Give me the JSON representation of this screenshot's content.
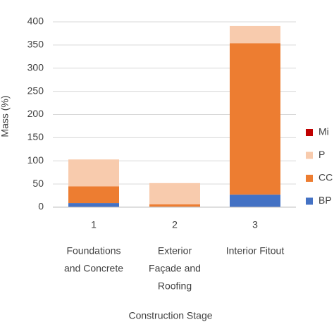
{
  "chart_data": {
    "type": "stacked-bar",
    "y_label": "Mass (%)",
    "x_label": "Construction Stage",
    "categories": [
      "1",
      "2",
      "3"
    ],
    "category_names": [
      [
        "Foundations",
        "and Concrete"
      ],
      [
        "Exterior",
        "Façade and",
        "Roofing"
      ],
      [
        "Interior Fitout"
      ]
    ],
    "series": [
      {
        "name": "BP",
        "color": "#4472c4",
        "values": [
          9,
          1,
          27
        ]
      },
      {
        "name": "CC",
        "color": "#ed7d31",
        "values": [
          36,
          5,
          327
        ]
      },
      {
        "name": "P",
        "color": "#f8cbad",
        "values": [
          58,
          46,
          37
        ]
      },
      {
        "name": "Mi",
        "color": "#c00000",
        "values": [
          0,
          0,
          0
        ]
      }
    ],
    "ylim": [
      0,
      400
    ],
    "yticks": [
      0,
      50,
      100,
      150,
      200,
      250,
      300,
      350,
      400
    ],
    "grid": true
  }
}
